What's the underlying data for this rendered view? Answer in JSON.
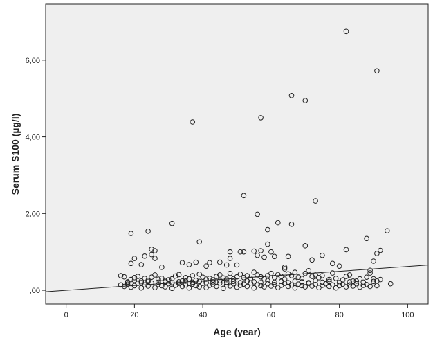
{
  "chart_data": {
    "type": "scatter",
    "title": "",
    "xlabel": "Age (year)",
    "ylabel": "Serum S100 (µg/l)",
    "xlim": [
      -6,
      106
    ],
    "ylim": [
      -0.36,
      7.46
    ],
    "xticks": [
      0,
      20,
      40,
      60,
      80,
      100
    ],
    "xtick_labels": [
      "0",
      "20",
      "40",
      "60",
      "80",
      "100"
    ],
    "yticks": [
      0,
      2,
      4,
      6
    ],
    "ytick_labels": [
      ",00",
      "2,00",
      "4,00",
      "6,00"
    ],
    "grid": false,
    "plot_background": "#efefef",
    "marker": "open-circle",
    "marker_color": "#222222",
    "fit_line": {
      "intercept": 0.0,
      "slope": 0.0062,
      "color": "#222222"
    },
    "points": [
      [
        82,
        6.75
      ],
      [
        91,
        5.72
      ],
      [
        66,
        5.08
      ],
      [
        70,
        4.95
      ],
      [
        57,
        4.5
      ],
      [
        37,
        4.39
      ],
      [
        52,
        2.47
      ],
      [
        73,
        2.33
      ],
      [
        56,
        1.98
      ],
      [
        31,
        1.74
      ],
      [
        62,
        1.76
      ],
      [
        66,
        1.72
      ],
      [
        24,
        1.54
      ],
      [
        19,
        1.48
      ],
      [
        59,
        1.58
      ],
      [
        94,
        1.55
      ],
      [
        88,
        1.35
      ],
      [
        39,
        1.26
      ],
      [
        70,
        1.16
      ],
      [
        59,
        1.2
      ],
      [
        25,
        1.07
      ],
      [
        26,
        1.03
      ],
      [
        48,
        1.0
      ],
      [
        51,
        1.0
      ],
      [
        52,
        1.0
      ],
      [
        55,
        1.02
      ],
      [
        57,
        1.03
      ],
      [
        60,
        1.0
      ],
      [
        82,
        1.06
      ],
      [
        92,
        1.04
      ],
      [
        91,
        0.96
      ],
      [
        19,
        0.7
      ],
      [
        20,
        0.83
      ],
      [
        22,
        0.67
      ],
      [
        23,
        0.89
      ],
      [
        25,
        0.93
      ],
      [
        26,
        0.83
      ],
      [
        28,
        0.6
      ],
      [
        34,
        0.72
      ],
      [
        36,
        0.67
      ],
      [
        38,
        0.73
      ],
      [
        41,
        0.63
      ],
      [
        42,
        0.72
      ],
      [
        45,
        0.73
      ],
      [
        47,
        0.66
      ],
      [
        48,
        0.83
      ],
      [
        50,
        0.66
      ],
      [
        56,
        0.91
      ],
      [
        58,
        0.86
      ],
      [
        61,
        0.88
      ],
      [
        64,
        0.6
      ],
      [
        64,
        0.56
      ],
      [
        65,
        0.88
      ],
      [
        72,
        0.79
      ],
      [
        75,
        0.91
      ],
      [
        78,
        0.7
      ],
      [
        80,
        0.63
      ],
      [
        89,
        0.52
      ],
      [
        90,
        0.76
      ],
      [
        16,
        0.38
      ],
      [
        17,
        0.35
      ],
      [
        18,
        0.2
      ],
      [
        19,
        0.28
      ],
      [
        20,
        0.33
      ],
      [
        21,
        0.36
      ],
      [
        22,
        0.24
      ],
      [
        23,
        0.31
      ],
      [
        24,
        0.26
      ],
      [
        25,
        0.34
      ],
      [
        26,
        0.4
      ],
      [
        27,
        0.29
      ],
      [
        28,
        0.31
      ],
      [
        29,
        0.22
      ],
      [
        30,
        0.27
      ],
      [
        31,
        0.3
      ],
      [
        32,
        0.37
      ],
      [
        33,
        0.41
      ],
      [
        34,
        0.24
      ],
      [
        35,
        0.33
      ],
      [
        36,
        0.3
      ],
      [
        37,
        0.38
      ],
      [
        38,
        0.26
      ],
      [
        39,
        0.42
      ],
      [
        40,
        0.34
      ],
      [
        41,
        0.29
      ],
      [
        42,
        0.31
      ],
      [
        43,
        0.27
      ],
      [
        44,
        0.36
      ],
      [
        45,
        0.4
      ],
      [
        46,
        0.32
      ],
      [
        47,
        0.29
      ],
      [
        48,
        0.44
      ],
      [
        49,
        0.3
      ],
      [
        50,
        0.35
      ],
      [
        51,
        0.42
      ],
      [
        52,
        0.33
      ],
      [
        53,
        0.38
      ],
      [
        54,
        0.31
      ],
      [
        55,
        0.47
      ],
      [
        56,
        0.4
      ],
      [
        57,
        0.35
      ],
      [
        58,
        0.3
      ],
      [
        59,
        0.38
      ],
      [
        60,
        0.44
      ],
      [
        61,
        0.33
      ],
      [
        62,
        0.41
      ],
      [
        63,
        0.36
      ],
      [
        64,
        0.29
      ],
      [
        65,
        0.43
      ],
      [
        66,
        0.38
      ],
      [
        67,
        0.47
      ],
      [
        68,
        0.34
      ],
      [
        69,
        0.31
      ],
      [
        70,
        0.44
      ],
      [
        71,
        0.51
      ],
      [
        72,
        0.36
      ],
      [
        73,
        0.4
      ],
      [
        74,
        0.33
      ],
      [
        75,
        0.38
      ],
      [
        77,
        0.28
      ],
      [
        78,
        0.45
      ],
      [
        79,
        0.31
      ],
      [
        81,
        0.27
      ],
      [
        82,
        0.36
      ],
      [
        83,
        0.4
      ],
      [
        84,
        0.24
      ],
      [
        86,
        0.3
      ],
      [
        88,
        0.34
      ],
      [
        89,
        0.45
      ],
      [
        90,
        0.3
      ],
      [
        91,
        0.24
      ],
      [
        92,
        0.28
      ],
      [
        95,
        0.17
      ],
      [
        16,
        0.14
      ],
      [
        17,
        0.1
      ],
      [
        18,
        0.16
      ],
      [
        19,
        0.08
      ],
      [
        20,
        0.12
      ],
      [
        21,
        0.18
      ],
      [
        22,
        0.06
      ],
      [
        23,
        0.14
      ],
      [
        24,
        0.11
      ],
      [
        25,
        0.19
      ],
      [
        26,
        0.07
      ],
      [
        27,
        0.15
      ],
      [
        28,
        0.12
      ],
      [
        29,
        0.09
      ],
      [
        30,
        0.17
      ],
      [
        31,
        0.05
      ],
      [
        32,
        0.13
      ],
      [
        33,
        0.18
      ],
      [
        34,
        0.1
      ],
      [
        35,
        0.14
      ],
      [
        36,
        0.06
      ],
      [
        37,
        0.16
      ],
      [
        38,
        0.12
      ],
      [
        39,
        0.09
      ],
      [
        40,
        0.18
      ],
      [
        41,
        0.07
      ],
      [
        42,
        0.13
      ],
      [
        43,
        0.15
      ],
      [
        44,
        0.1
      ],
      [
        45,
        0.19
      ],
      [
        46,
        0.05
      ],
      [
        47,
        0.14
      ],
      [
        48,
        0.11
      ],
      [
        49,
        0.17
      ],
      [
        50,
        0.08
      ],
      [
        51,
        0.13
      ],
      [
        52,
        0.16
      ],
      [
        53,
        0.1
      ],
      [
        54,
        0.19
      ],
      [
        55,
        0.06
      ],
      [
        56,
        0.14
      ],
      [
        57,
        0.12
      ],
      [
        58,
        0.09
      ],
      [
        59,
        0.17
      ],
      [
        60,
        0.11
      ],
      [
        61,
        0.15
      ],
      [
        62,
        0.07
      ],
      [
        63,
        0.13
      ],
      [
        64,
        0.18
      ],
      [
        65,
        0.1
      ],
      [
        66,
        0.14
      ],
      [
        67,
        0.06
      ],
      [
        68,
        0.16
      ],
      [
        69,
        0.12
      ],
      [
        70,
        0.09
      ],
      [
        71,
        0.18
      ],
      [
        72,
        0.11
      ],
      [
        73,
        0.15
      ],
      [
        74,
        0.07
      ],
      [
        75,
        0.13
      ],
      [
        76,
        0.17
      ],
      [
        77,
        0.1
      ],
      [
        78,
        0.14
      ],
      [
        79,
        0.06
      ],
      [
        80,
        0.12
      ],
      [
        81,
        0.16
      ],
      [
        82,
        0.09
      ],
      [
        83,
        0.14
      ],
      [
        84,
        0.11
      ],
      [
        85,
        0.17
      ],
      [
        86,
        0.08
      ],
      [
        87,
        0.13
      ],
      [
        88,
        0.15
      ],
      [
        89,
        0.1
      ],
      [
        90,
        0.19
      ],
      [
        91,
        0.12
      ],
      [
        18,
        0.22
      ],
      [
        20,
        0.26
      ],
      [
        22,
        0.2
      ],
      [
        24,
        0.23
      ],
      [
        27,
        0.21
      ],
      [
        29,
        0.25
      ],
      [
        31,
        0.2
      ],
      [
        33,
        0.22
      ],
      [
        35,
        0.24
      ],
      [
        37,
        0.21
      ],
      [
        39,
        0.23
      ],
      [
        41,
        0.2
      ],
      [
        43,
        0.22
      ],
      [
        45,
        0.25
      ],
      [
        47,
        0.21
      ],
      [
        49,
        0.23
      ],
      [
        51,
        0.2
      ],
      [
        53,
        0.24
      ],
      [
        55,
        0.22
      ],
      [
        57,
        0.2
      ],
      [
        59,
        0.25
      ],
      [
        61,
        0.21
      ],
      [
        63,
        0.23
      ],
      [
        65,
        0.2
      ],
      [
        67,
        0.24
      ],
      [
        69,
        0.22
      ],
      [
        71,
        0.2
      ],
      [
        73,
        0.25
      ],
      [
        75,
        0.21
      ],
      [
        77,
        0.23
      ],
      [
        80,
        0.2
      ],
      [
        83,
        0.22
      ],
      [
        85,
        0.24
      ],
      [
        87,
        0.21
      ],
      [
        90,
        0.23
      ]
    ]
  }
}
